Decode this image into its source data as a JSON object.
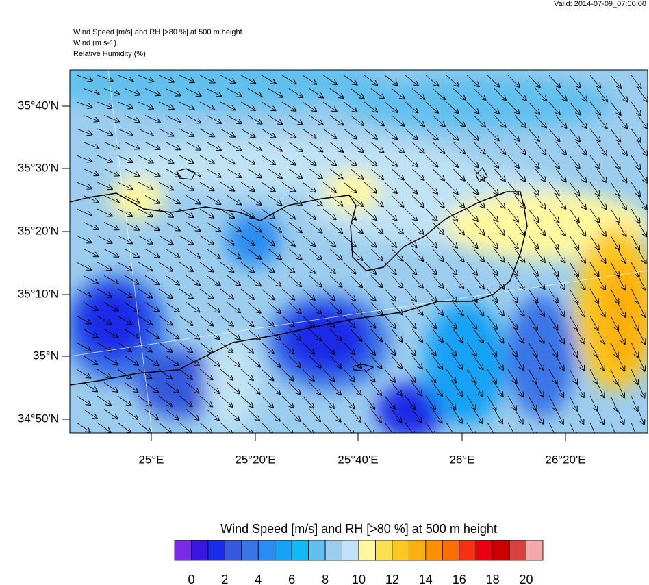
{
  "valid": "Valid: 2014-07-09_07:00:00",
  "header": [
    "Wind Speed [m/s] and RH [>80 %] at 500 m height",
    "Wind   (m s-1)",
    "Relative Humidity   (%)"
  ],
  "lat_labels": [
    "35°40'N",
    "35°30'N",
    "35°20'N",
    "35°10'N",
    "35°N",
    "34°50'N"
  ],
  "lon_labels": [
    "25°E",
    "25°20'E",
    "25°40'E",
    "26°E",
    "26°20'E"
  ],
  "colorbar": {
    "title": "Wind Speed [m/s] and RH [>80 %] at 500 m height",
    "colors": [
      "#7b2ae8",
      "#3b16e0",
      "#1a2ce8",
      "#3558dc",
      "#3a74e6",
      "#2a8cf0",
      "#18a2f5",
      "#10baf5",
      "#62c0ee",
      "#9ccdee",
      "#c0e2f4",
      "#fff8a0",
      "#fde050",
      "#fcc820",
      "#fbb010",
      "#fa9008",
      "#f87005",
      "#f53010",
      "#e80010",
      "#cc0000",
      "#d84040",
      "#f5a8a8"
    ],
    "labels": [
      0,
      2,
      4,
      6,
      8,
      10,
      12,
      14,
      16,
      18,
      20
    ]
  }
}
